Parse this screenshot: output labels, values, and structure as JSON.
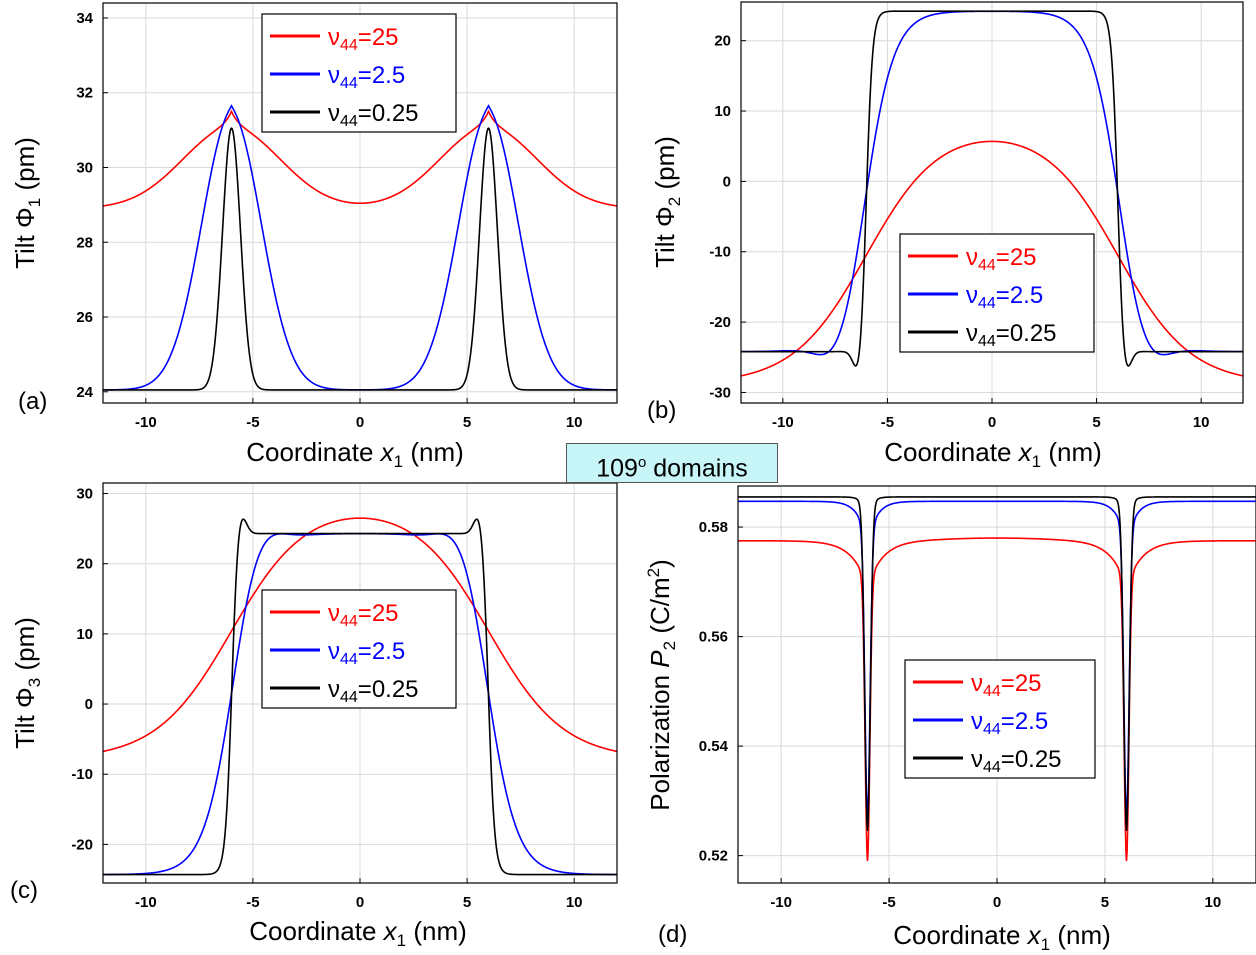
{
  "figure_label": {
    "prefix": "109",
    "sup": "o",
    "suffix": " domains"
  },
  "chart_data": [
    {
      "id": "a",
      "type": "line",
      "panel_label": "(a)",
      "xlabel": {
        "prefix": "Coordinate ",
        "var": "x",
        "sub": "1",
        "suffix": " (nm)"
      },
      "ylabel": {
        "prefix": "Tilt  Φ",
        "sub": "1",
        "suffix": " (pm)"
      },
      "xlim": [
        -12,
        12
      ],
      "ylim": [
        23.7,
        34.4
      ],
      "xticks": [
        -10,
        -5,
        0,
        5,
        10
      ],
      "yticks": [
        24,
        26,
        28,
        30,
        32,
        34
      ],
      "grid": true,
      "legend_position": "top-center",
      "series": [
        {
          "name": "25",
          "color": "#ff0000",
          "kind": "peakA",
          "params": {
            "base": 28.9,
            "amp": 2.15,
            "w": 2.3,
            "cusp": 0.45,
            "cw": 0.35
          }
        },
        {
          "name": "2.5",
          "color": "#0000ff",
          "kind": "peakA",
          "params": {
            "base": 24.05,
            "amp": 7.3,
            "w": 1.4,
            "cusp": 0.3,
            "cw": 0.3
          }
        },
        {
          "name": "0.25",
          "color": "#000000",
          "kind": "peakA",
          "params": {
            "base": 24.05,
            "amp": 7.0,
            "w": 0.42,
            "cusp": 0,
            "cw": 0.2
          }
        }
      ]
    },
    {
      "id": "b",
      "type": "line",
      "panel_label": "(b)",
      "xlabel": {
        "prefix": "Coordinate ",
        "var": "x",
        "sub": "1",
        "suffix": " (nm)"
      },
      "ylabel": {
        "prefix": "Tilt  Φ",
        "sub": "2",
        "suffix": " (pm)"
      },
      "xlim": [
        -12,
        12
      ],
      "ylim": [
        -31.5,
        25.5
      ],
      "xticks": [
        -10,
        -5,
        0,
        5,
        10
      ],
      "yticks": [
        -30,
        -20,
        -10,
        0,
        10,
        20
      ],
      "grid": true,
      "legend_position": "lower-right",
      "series": [
        {
          "name": "25",
          "color": "#ff0000",
          "kind": "step",
          "params": {
            "lo": -28.8,
            "hi": 8.0,
            "w": 1.75,
            "dip": 0,
            "dpos": 0,
            "dw": 1
          }
        },
        {
          "name": "2.5",
          "color": "#0000ff",
          "kind": "step",
          "params": {
            "lo": -24.2,
            "hi": 24.2,
            "w": 0.7,
            "dip": 4.0,
            "dpos": 7.3,
            "dw": 0.9
          }
        },
        {
          "name": "0.25",
          "color": "#000000",
          "kind": "step",
          "params": {
            "lo": -24.2,
            "hi": 24.2,
            "w": 0.15,
            "dip": 4.4,
            "dpos": 6.35,
            "dw": 0.25
          }
        }
      ]
    },
    {
      "id": "c",
      "type": "line",
      "panel_label": "(c)",
      "xlabel": {
        "prefix": "Coordinate ",
        "var": "x",
        "sub": "1",
        "suffix": " (nm)"
      },
      "ylabel": {
        "prefix": "Tilt  Φ",
        "sub": "3",
        "suffix": " (pm)"
      },
      "xlim": [
        -12,
        12
      ],
      "ylim": [
        -25.5,
        31.5
      ],
      "xticks": [
        -10,
        -5,
        0,
        5,
        10
      ],
      "yticks": [
        -20,
        -10,
        0,
        10,
        20,
        30
      ],
      "grid": true,
      "legend_position": "center-right",
      "series": [
        {
          "name": "25",
          "color": "#ff0000",
          "kind": "step",
          "params": {
            "lo": -7.9,
            "hi": 28.8,
            "w": 1.75,
            "dip": 0,
            "dpos": 0,
            "dw": 1
          }
        },
        {
          "name": "2.5",
          "color": "#0000ff",
          "kind": "step",
          "params": {
            "lo": -24.3,
            "hi": 24.3,
            "w": 0.7,
            "dip": -3.6,
            "dpos": 4.8,
            "dw": 0.9
          }
        },
        {
          "name": "0.25",
          "color": "#000000",
          "kind": "step",
          "params": {
            "lo": -24.3,
            "hi": 24.3,
            "w": 0.15,
            "dip": -3.9,
            "dpos": 5.6,
            "dw": 0.25
          }
        }
      ]
    },
    {
      "id": "d",
      "type": "line",
      "panel_label": "(d)",
      "xlabel": {
        "prefix": "Coordinate ",
        "var": "x",
        "sub": "1",
        "suffix": " (nm)"
      },
      "ylabel": {
        "prefix": "Polarization ",
        "var": "P",
        "sub": "2",
        "suffix": " (C/m",
        "sup": "2",
        "end": ")"
      },
      "xlim": [
        -12,
        12
      ],
      "ylim": [
        0.515,
        0.5875
      ],
      "xticks": [
        -10,
        -5,
        0,
        5,
        10
      ],
      "yticks": [
        0.52,
        0.54,
        0.56,
        0.58
      ],
      "ytick_decimals": 2,
      "grid": true,
      "legend_position": "lower-center",
      "series": [
        {
          "name": "25",
          "color": "#ff0000",
          "kind": "dip",
          "params": {
            "base": 0.5775,
            "mid": 0.0005,
            "mw": 2.5,
            "broad": 0.0085,
            "bw": 0.7,
            "sharp": 0.05,
            "sw": 0.11
          }
        },
        {
          "name": "2.5",
          "color": "#0000ff",
          "kind": "dip",
          "params": {
            "base": 0.5847,
            "mid": 0,
            "mw": 1,
            "broad": 0.008,
            "bw": 0.4,
            "sharp": 0.05,
            "sw": 0.12
          }
        },
        {
          "name": "0.25",
          "color": "#000000",
          "kind": "dip",
          "params": {
            "base": 0.5855,
            "mid": 0,
            "mw": 1,
            "broad": 0.004,
            "bw": 0.2,
            "sharp": 0.057,
            "sw": 0.13
          }
        }
      ]
    }
  ],
  "legend_prefix": "ν",
  "legend_sub": "44",
  "colors": {
    "red": "#ff0000",
    "blue": "#0000ff",
    "black": "#000000"
  }
}
